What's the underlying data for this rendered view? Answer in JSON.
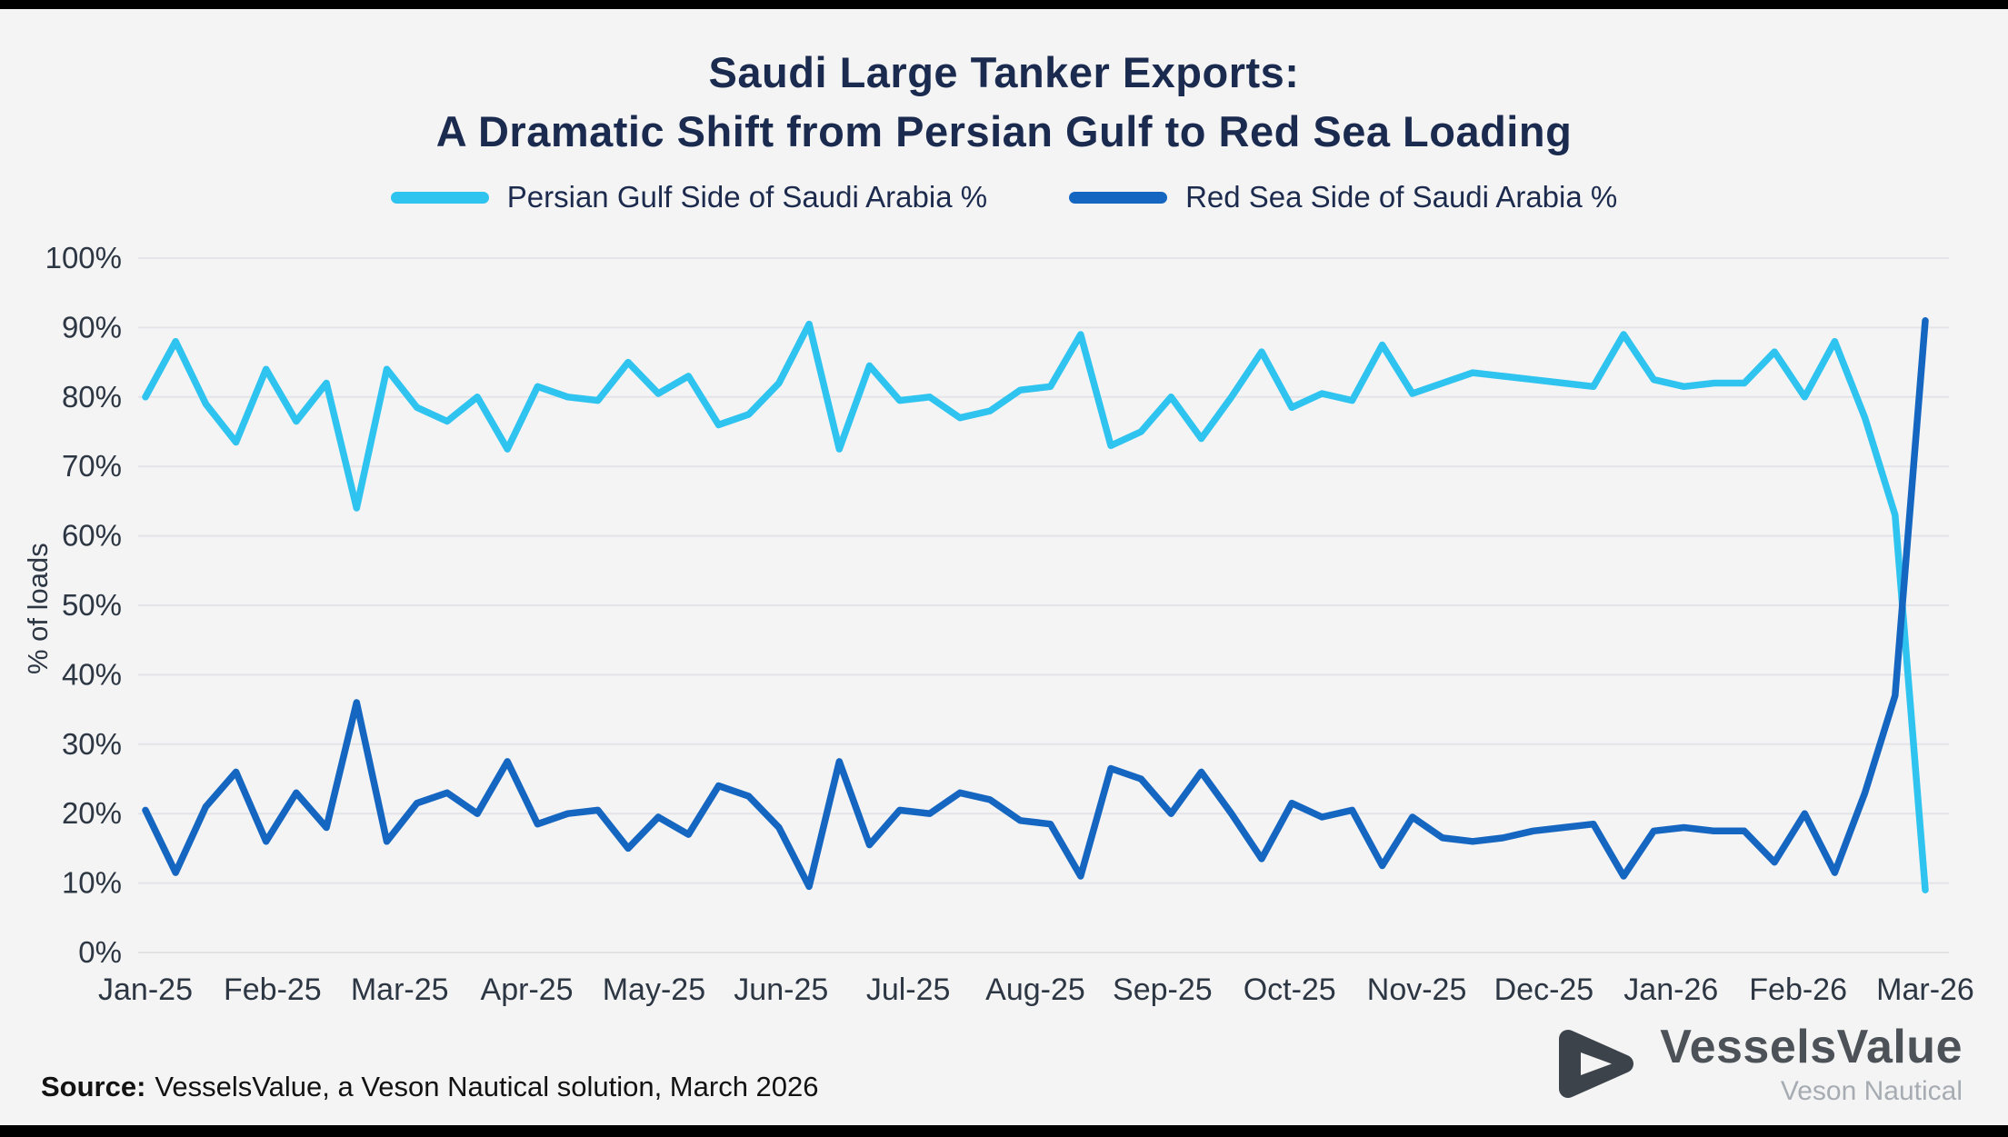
{
  "title": {
    "line1": "Saudi Large Tanker Exports:",
    "line2": "A Dramatic Shift from Persian Gulf to Red Sea Loading"
  },
  "legend": [
    {
      "label": "Persian Gulf Side of Saudi Arabia %",
      "color": "#2FC3F0"
    },
    {
      "label": "Red Sea Side of Saudi Arabia %",
      "color": "#1566C1"
    }
  ],
  "source": {
    "label": "Source:",
    "text": "VesselsValue, a Veson Nautical solution, March 2026"
  },
  "logo": {
    "name": "VesselsValue",
    "subtitle": "Veson Nautical"
  },
  "chart_data": {
    "type": "line",
    "title": "Saudi Large Tanker Exports: A Dramatic Shift from Persian Gulf to Red Sea Loading",
    "ylabel": "% of loads",
    "ylim": [
      0,
      100
    ],
    "ytick_step": 10,
    "grid": "horizontal",
    "legend_position": "top",
    "x_tick_labels": [
      "Jan-25",
      "Feb-25",
      "Mar-25",
      "Apr-25",
      "May-25",
      "Jun-25",
      "Jul-25",
      "Aug-25",
      "Sep-25",
      "Oct-25",
      "Nov-25",
      "Dec-25",
      "Jan-26",
      "Feb-26",
      "Mar-26"
    ],
    "series": [
      {
        "id": "persian-gulf",
        "name": "Persian Gulf Side of Saudi Arabia %",
        "color": "#2FC3F0",
        "values": [
          80,
          88,
          79,
          73.5,
          84,
          76.5,
          82,
          64,
          84,
          78.5,
          76.5,
          80,
          72.5,
          81.5,
          80,
          79.5,
          85,
          80.5,
          83,
          76,
          77.5,
          82,
          90.5,
          72.5,
          84.5,
          79.5,
          80,
          77,
          78,
          81,
          81.5,
          89,
          73,
          75,
          80,
          74,
          80,
          86.5,
          78.5,
          80.5,
          79.5,
          87.5,
          80.5,
          82,
          83.5,
          83,
          82.5,
          82,
          81.5,
          89,
          82.5,
          81.5,
          82,
          82,
          86.5,
          80,
          88,
          77,
          63,
          9
        ]
      },
      {
        "id": "red-sea",
        "name": "Red Sea Side of Saudi Arabia %",
        "color": "#1566C1",
        "values": [
          20.5,
          11.5,
          21,
          26,
          16,
          23,
          18,
          36,
          16,
          21.5,
          23,
          20,
          27.5,
          18.5,
          20,
          20.5,
          15,
          19.5,
          17,
          24,
          22.5,
          18,
          9.5,
          27.5,
          15.5,
          20.5,
          20,
          23,
          22,
          19,
          18.5,
          11,
          26.5,
          25,
          20,
          26,
          20,
          13.5,
          21.5,
          19.5,
          20.5,
          12.5,
          19.5,
          16.5,
          16,
          16.5,
          17.5,
          18,
          18.5,
          11,
          17.5,
          18,
          17.5,
          17.5,
          13,
          20,
          11.5,
          23,
          37,
          91
        ]
      }
    ]
  }
}
